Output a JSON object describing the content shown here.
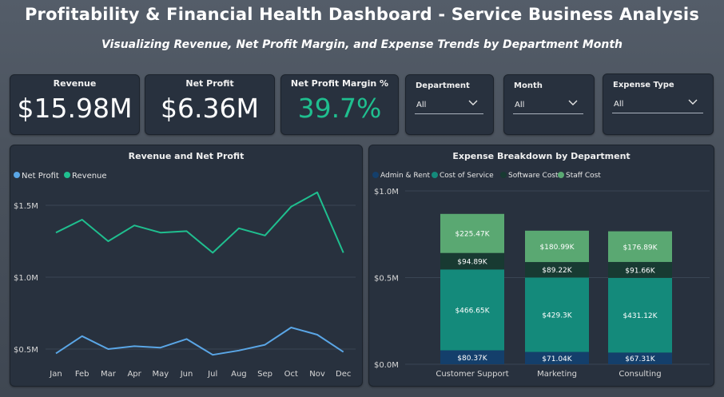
{
  "header": {
    "title": "Profitability & Financial Health Dashboard - Service Business Analysis",
    "subtitle": "Visualizing Revenue, Net Profit Margin, and Expense Trends by Department  Month"
  },
  "kpis": {
    "revenue": {
      "label": "Revenue",
      "value": "$15.98M"
    },
    "net_profit": {
      "label": "Net Profit",
      "value": "$6.36M"
    },
    "margin": {
      "label": "Net Profit Margin %",
      "value": "39.7%"
    }
  },
  "slicers": {
    "department": {
      "label": "Department",
      "value": "All"
    },
    "month": {
      "label": "Month",
      "value": "All"
    },
    "expense_type": {
      "label": "Expense Type",
      "value": "All"
    }
  },
  "colors": {
    "revenue": "#1fbf8f",
    "net_profit": "#5aa6e6",
    "margin_text": "#1fbf8f",
    "admin_rent": "#143f6b",
    "cost_of_service": "#148a7b",
    "software_cost": "#183a32",
    "staff_cost": "#5aa872"
  },
  "chart_data": [
    {
      "type": "line",
      "title": "Revenue and Net Profit",
      "legend": [
        "Net Profit",
        "Revenue"
      ],
      "categories": [
        "Jan",
        "Feb",
        "Mar",
        "Apr",
        "May",
        "Jun",
        "Jul",
        "Aug",
        "Sep",
        "Oct",
        "Nov",
        "Dec"
      ],
      "series": [
        {
          "name": "Revenue",
          "values": [
            1.31,
            1.4,
            1.25,
            1.36,
            1.31,
            1.32,
            1.17,
            1.34,
            1.29,
            1.49,
            1.59,
            1.17
          ]
        },
        {
          "name": "Net Profit",
          "values": [
            0.47,
            0.59,
            0.5,
            0.52,
            0.51,
            0.57,
            0.46,
            0.49,
            0.53,
            0.65,
            0.6,
            0.48
          ]
        }
      ],
      "y_ticks": [
        "$1.5M",
        "$1.0M",
        "$0.5M"
      ],
      "ylim": [
        0.45,
        1.65
      ]
    },
    {
      "type": "bar",
      "stacked": true,
      "title": "Expense Breakdown by Department",
      "legend": [
        "Admin & Rent",
        "Cost of Service",
        "Software Cost",
        "Staff Cost"
      ],
      "categories": [
        "Customer Support",
        "Marketing",
        "Consulting"
      ],
      "series": [
        {
          "name": "Admin & Rent",
          "values": [
            80.37,
            71.04,
            67.31
          ],
          "labels": [
            "$80.37K",
            "$71.04K",
            "$67.31K"
          ]
        },
        {
          "name": "Cost of Service",
          "values": [
            466.65,
            429.3,
            431.12
          ],
          "labels": [
            "$466.65K",
            "$429.3K",
            "$431.12K"
          ]
        },
        {
          "name": "Software Cost",
          "values": [
            94.89,
            89.22,
            91.66
          ],
          "labels": [
            "$94.89K",
            "$89.22K",
            "$91.66K"
          ]
        },
        {
          "name": "Staff Cost",
          "values": [
            225.47,
            180.99,
            176.89
          ],
          "labels": [
            "$225.47K",
            "$180.99K",
            "$176.89K"
          ]
        }
      ],
      "y_ticks": [
        "$1.0M",
        "$0.5M",
        "$0.0M"
      ],
      "ylim": [
        0,
        1000
      ]
    }
  ]
}
